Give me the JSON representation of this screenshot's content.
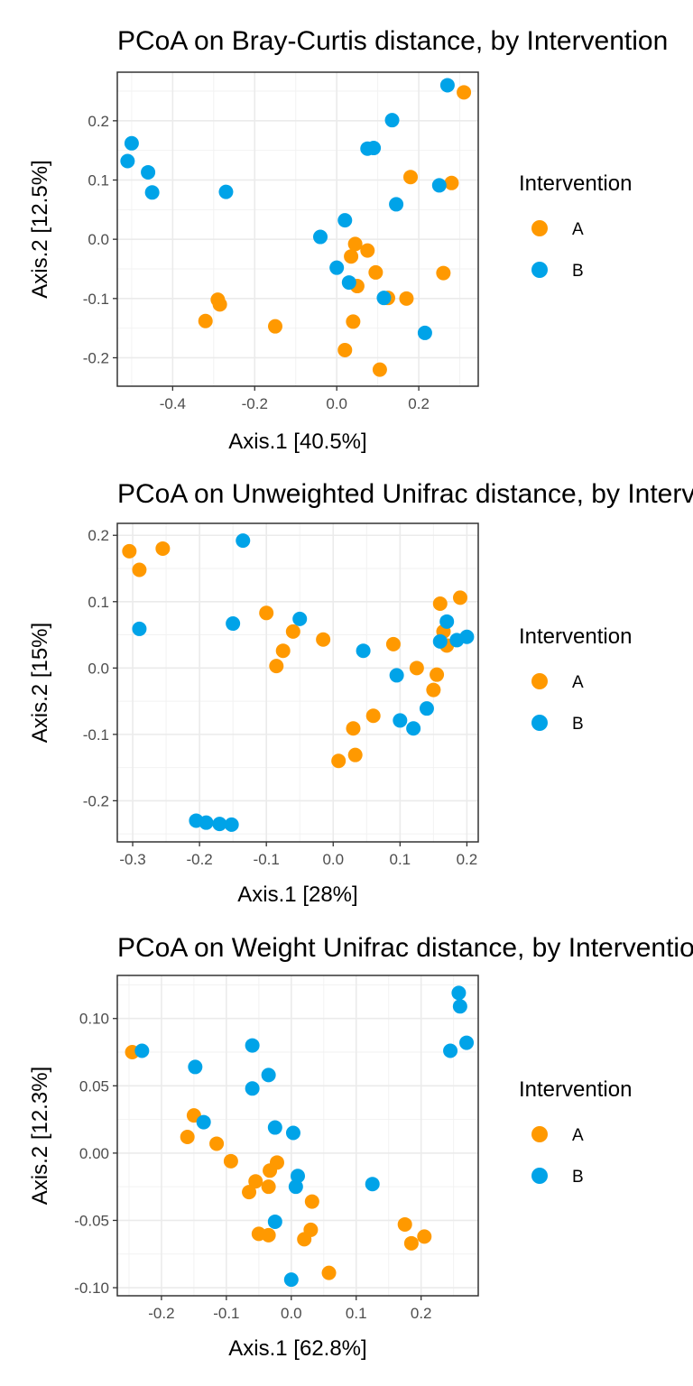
{
  "chart_data": [
    {
      "type": "scatter",
      "title": "PCoA on Bray-Curtis distance, by Intervention",
      "xlabel": "Axis.1   [40.5%]",
      "ylabel": "Axis.2   [12.5%]",
      "xlim": [
        -0.535,
        0.345
      ],
      "ylim": [
        -0.248,
        0.282
      ],
      "xticks": [
        -0.4,
        -0.2,
        0.0,
        0.2
      ],
      "yticks": [
        -0.2,
        -0.1,
        0.0,
        0.1,
        0.2
      ],
      "xticklabels": [
        "-0.4",
        "-0.2",
        "0.0",
        "0.2"
      ],
      "yticklabels": [
        "-0.2",
        "-0.1",
        "0.0",
        "0.1",
        "0.2"
      ],
      "legend": {
        "title": "Intervention",
        "placement": "right"
      },
      "series": [
        {
          "name": "A",
          "color": "#FF9900",
          "points": [
            [
              0.31,
              0.248
            ],
            [
              0.18,
              0.105
            ],
            [
              0.28,
              0.095
            ],
            [
              0.045,
              -0.008
            ],
            [
              0.075,
              -0.019
            ],
            [
              0.035,
              -0.029
            ],
            [
              0.095,
              -0.056
            ],
            [
              0.26,
              -0.057
            ],
            [
              0.05,
              -0.079
            ],
            [
              0.125,
              -0.099
            ],
            [
              0.17,
              -0.1
            ],
            [
              -0.29,
              -0.102
            ],
            [
              -0.285,
              -0.11
            ],
            [
              -0.32,
              -0.138
            ],
            [
              0.04,
              -0.139
            ],
            [
              -0.15,
              -0.147
            ],
            [
              0.02,
              -0.187
            ],
            [
              0.105,
              -0.22
            ]
          ]
        },
        {
          "name": "B",
          "color": "#00A3E8",
          "points": [
            [
              0.27,
              0.26
            ],
            [
              0.135,
              0.201
            ],
            [
              -0.5,
              0.162
            ],
            [
              0.075,
              0.153
            ],
            [
              0.09,
              0.154
            ],
            [
              -0.51,
              0.132
            ],
            [
              -0.46,
              0.113
            ],
            [
              0.25,
              0.091
            ],
            [
              -0.45,
              0.079
            ],
            [
              -0.27,
              0.08
            ],
            [
              0.145,
              0.059
            ],
            [
              0.02,
              0.032
            ],
            [
              -0.04,
              0.004
            ],
            [
              0.0,
              -0.048
            ],
            [
              0.03,
              -0.073
            ],
            [
              0.115,
              -0.099
            ],
            [
              0.215,
              -0.158
            ]
          ]
        }
      ]
    },
    {
      "type": "scatter",
      "title": "PCoA on Unweighted Unifrac distance, by Intervention",
      "xlabel": "Axis.1   [28%]",
      "ylabel": "Axis.2   [15%]",
      "xlim": [
        -0.323,
        0.217
      ],
      "ylim": [
        -0.262,
        0.218
      ],
      "xticks": [
        -0.3,
        -0.2,
        -0.1,
        0.0,
        0.1,
        0.2
      ],
      "yticks": [
        -0.2,
        -0.1,
        0.0,
        0.1,
        0.2
      ],
      "xticklabels": [
        "-0.3",
        "-0.2",
        "-0.1",
        "0.0",
        "0.1",
        "0.2"
      ],
      "yticklabels": [
        "-0.2",
        "-0.1",
        "0.0",
        "0.1",
        "0.2"
      ],
      "legend": {
        "title": "Intervention",
        "placement": "right"
      },
      "series": [
        {
          "name": "A",
          "color": "#FF9900",
          "points": [
            [
              -0.305,
              0.176
            ],
            [
              -0.255,
              0.18
            ],
            [
              -0.29,
              0.148
            ],
            [
              0.19,
              0.106
            ],
            [
              0.16,
              0.097
            ],
            [
              -0.1,
              0.083
            ],
            [
              0.165,
              0.055
            ],
            [
              -0.06,
              0.055
            ],
            [
              -0.015,
              0.043
            ],
            [
              0.09,
              0.036
            ],
            [
              0.17,
              0.034
            ],
            [
              -0.075,
              0.026
            ],
            [
              -0.085,
              0.003
            ],
            [
              0.125,
              0.0
            ],
            [
              0.155,
              -0.01
            ],
            [
              0.15,
              -0.033
            ],
            [
              0.06,
              -0.072
            ],
            [
              0.03,
              -0.091
            ],
            [
              0.033,
              -0.131
            ],
            [
              0.008,
              -0.14
            ]
          ]
        },
        {
          "name": "B",
          "color": "#00A3E8",
          "points": [
            [
              -0.135,
              0.192
            ],
            [
              -0.05,
              0.074
            ],
            [
              0.17,
              0.07
            ],
            [
              -0.15,
              0.067
            ],
            [
              -0.29,
              0.059
            ],
            [
              0.2,
              0.047
            ],
            [
              0.185,
              0.042
            ],
            [
              0.16,
              0.04
            ],
            [
              0.045,
              0.026
            ],
            [
              0.095,
              -0.011
            ],
            [
              0.14,
              -0.061
            ],
            [
              0.1,
              -0.079
            ],
            [
              0.12,
              -0.091
            ],
            [
              -0.205,
              -0.23
            ],
            [
              -0.19,
              -0.233
            ],
            [
              -0.17,
              -0.235
            ],
            [
              -0.152,
              -0.236
            ]
          ]
        }
      ]
    },
    {
      "type": "scatter",
      "title": "PCoA on Weight Unifrac distance, by Intervention",
      "xlabel": "Axis.1   [62.8%]",
      "ylabel": "Axis.2   [12.3%]",
      "xlim": [
        -0.268,
        0.288
      ],
      "ylim": [
        -0.106,
        0.132
      ],
      "xticks": [
        -0.2,
        -0.1,
        0.0,
        0.1,
        0.2
      ],
      "yticks": [
        -0.1,
        -0.05,
        0.0,
        0.05,
        0.1
      ],
      "xticklabels": [
        "-0.2",
        "-0.1",
        "0.0",
        "0.1",
        "0.2"
      ],
      "yticklabels": [
        "-0.10",
        "-0.05",
        "0.00",
        "0.05",
        "0.10"
      ],
      "legend": {
        "title": "Intervention",
        "placement": "right"
      },
      "series": [
        {
          "name": "A",
          "color": "#FF9900",
          "points": [
            [
              -0.245,
              0.075
            ],
            [
              -0.15,
              0.028
            ],
            [
              -0.16,
              0.012
            ],
            [
              -0.115,
              0.007
            ],
            [
              -0.093,
              -0.006
            ],
            [
              -0.022,
              -0.007
            ],
            [
              -0.033,
              -0.013
            ],
            [
              -0.055,
              -0.021
            ],
            [
              -0.035,
              -0.025
            ],
            [
              -0.065,
              -0.029
            ],
            [
              0.032,
              -0.036
            ],
            [
              -0.05,
              -0.06
            ],
            [
              -0.035,
              -0.061
            ],
            [
              0.03,
              -0.057
            ],
            [
              0.02,
              -0.064
            ],
            [
              0.175,
              -0.053
            ],
            [
              0.185,
              -0.067
            ],
            [
              0.205,
              -0.062
            ],
            [
              0.058,
              -0.089
            ]
          ]
        },
        {
          "name": "B",
          "color": "#00A3E8",
          "points": [
            [
              0.258,
              0.119
            ],
            [
              0.26,
              0.109
            ],
            [
              0.27,
              0.082
            ],
            [
              0.245,
              0.076
            ],
            [
              -0.23,
              0.076
            ],
            [
              -0.06,
              0.08
            ],
            [
              -0.148,
              0.064
            ],
            [
              -0.035,
              0.058
            ],
            [
              -0.06,
              0.048
            ],
            [
              -0.135,
              0.023
            ],
            [
              -0.025,
              0.019
            ],
            [
              0.003,
              0.015
            ],
            [
              0.01,
              -0.017
            ],
            [
              0.007,
              -0.025
            ],
            [
              0.125,
              -0.023
            ],
            [
              -0.025,
              -0.051
            ],
            [
              0.0,
              -0.094
            ]
          ]
        }
      ]
    }
  ]
}
